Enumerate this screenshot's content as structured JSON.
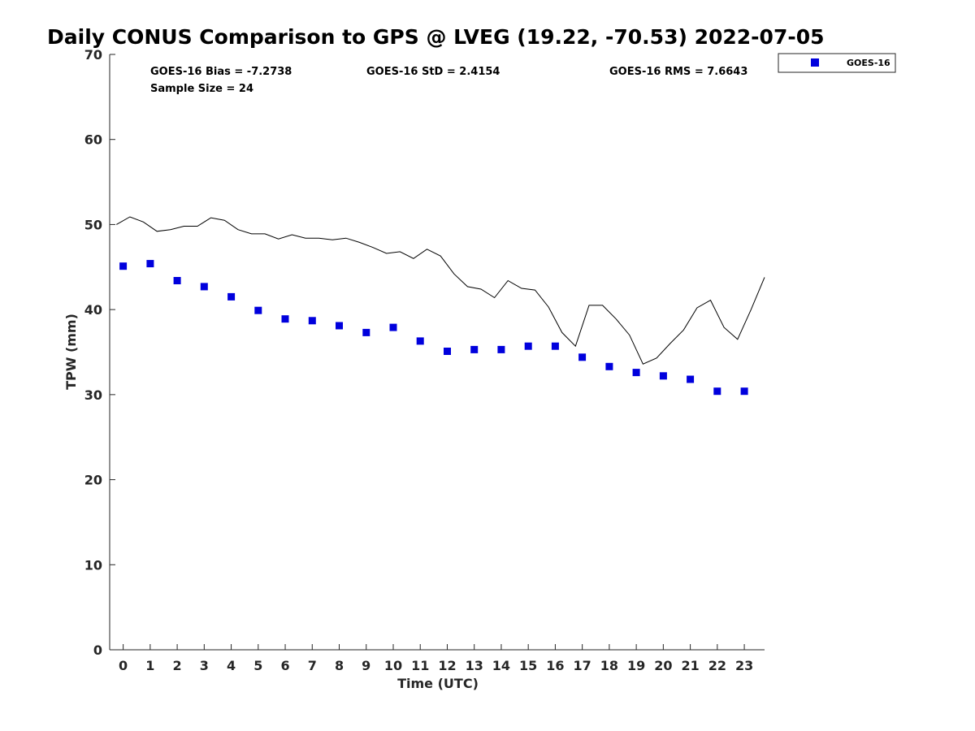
{
  "chart_data": {
    "type": "scatter",
    "title": "Daily CONUS Comparison to GPS @ LVEG (19.22, -70.53) 2022-07-05",
    "xlabel": "Time (UTC)",
    "ylabel": "TPW (mm)",
    "xlim": [
      -0.5,
      23.75
    ],
    "ylim": [
      0,
      70
    ],
    "xticks": [
      0,
      1,
      2,
      3,
      4,
      5,
      6,
      7,
      8,
      9,
      10,
      11,
      12,
      13,
      14,
      15,
      16,
      17,
      18,
      19,
      20,
      21,
      22,
      23
    ],
    "yticks": [
      0,
      10,
      20,
      30,
      40,
      50,
      60,
      70
    ],
    "grid": false,
    "legend_position": "top-right (outside axes)",
    "stats": {
      "bias": "GOES-16 Bias = -7.2738",
      "std": "GOES-16 StD = 2.4154",
      "rms": "GOES-16 RMS = 7.6643",
      "sample": "Sample Size = 24"
    },
    "series": [
      {
        "name": "GOES-16",
        "kind": "scatter",
        "marker": "square",
        "color": "#0000dd",
        "x": [
          0,
          1,
          2,
          3,
          4,
          5,
          6,
          7,
          8,
          9,
          10,
          11,
          12,
          13,
          14,
          15,
          16,
          17,
          18,
          19,
          20,
          21,
          22,
          23
        ],
        "y": [
          45.1,
          45.4,
          43.4,
          42.7,
          41.5,
          39.9,
          38.9,
          38.7,
          38.1,
          37.3,
          37.9,
          36.3,
          35.1,
          35.3,
          35.3,
          35.7,
          35.7,
          34.4,
          33.3,
          32.6,
          32.2,
          31.8,
          30.4,
          30.4
        ]
      },
      {
        "kind": "line",
        "color": "#000000",
        "x": [
          -0.25,
          0.25,
          0.75,
          1.25,
          1.75,
          2.25,
          2.75,
          3.25,
          3.75,
          4.25,
          4.75,
          5.25,
          5.75,
          6.25,
          6.75,
          7.25,
          7.75,
          8.25,
          8.75,
          9.25,
          9.75,
          10.25,
          10.75,
          11.25,
          11.75,
          12.25,
          12.75,
          13.25,
          13.75,
          14.25,
          14.75,
          15.25,
          15.75,
          16.25,
          16.75,
          17.25,
          17.75,
          18.25,
          18.75,
          19.25,
          19.75,
          20.25,
          20.75,
          21.25,
          21.75,
          22.25,
          22.75,
          23.25,
          23.75
        ],
        "y": [
          50.0,
          50.9,
          50.3,
          49.2,
          49.4,
          49.8,
          49.8,
          50.8,
          50.5,
          49.4,
          48.9,
          48.9,
          48.3,
          48.8,
          48.4,
          48.4,
          48.2,
          48.4,
          47.9,
          47.3,
          46.6,
          46.8,
          46.0,
          47.1,
          46.3,
          44.2,
          42.7,
          42.4,
          41.4,
          43.4,
          42.5,
          42.3,
          40.3,
          37.3,
          35.7,
          40.5,
          40.5,
          38.9,
          37.0,
          33.6,
          34.3,
          36.0,
          37.6,
          40.2,
          41.1,
          37.9,
          36.5,
          40.0,
          43.8
        ]
      }
    ]
  }
}
